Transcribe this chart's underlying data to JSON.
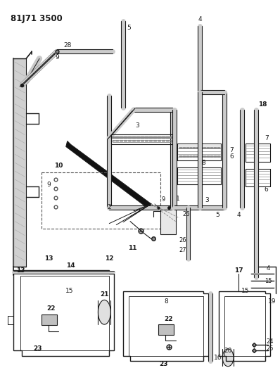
{
  "title": "81J71 3500",
  "bg_color": "#ffffff",
  "lc": "#1a1a1a",
  "fig_width": 3.98,
  "fig_height": 5.33,
  "dpi": 100
}
